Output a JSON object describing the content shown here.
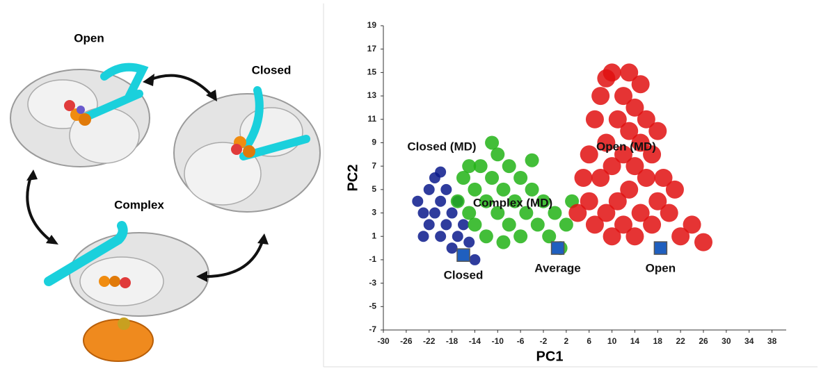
{
  "structures": {
    "labels": [
      "Open",
      "Closed",
      "Complex"
    ]
  },
  "chart_data": {
    "type": "scatter",
    "xlabel": "PC1",
    "ylabel": "PC2",
    "xlim": [
      -30,
      40
    ],
    "ylim": [
      -7,
      19
    ],
    "xticks": [
      -30,
      -26,
      -22,
      -18,
      -14,
      -10,
      -6,
      -2,
      2,
      6,
      10,
      14,
      18,
      22,
      26,
      30,
      34,
      38
    ],
    "yticks": [
      -7,
      -5,
      -3,
      -1,
      1,
      3,
      5,
      7,
      9,
      11,
      13,
      15,
      17,
      19
    ],
    "series": [
      {
        "name": "Closed (MD)",
        "color": "#0a1a8c",
        "x": [
          -24,
          -23,
          -22,
          -22,
          -21,
          -21,
          -20,
          -20,
          -19,
          -19,
          -18,
          -18,
          -17,
          -17,
          -16,
          -16,
          -15,
          -14,
          -23,
          -20
        ],
        "y": [
          4,
          3,
          5,
          2,
          6,
          3,
          4,
          1,
          5,
          2,
          3,
          0,
          4,
          1,
          2,
          -0.5,
          0.5,
          -1,
          1,
          6.5
        ]
      },
      {
        "name": "Complex (MD)",
        "color": "#22b316",
        "x": [
          -17,
          -16,
          -15,
          -14,
          -14,
          -13,
          -12,
          -12,
          -11,
          -10,
          -10,
          -9,
          -8,
          -8,
          -7,
          -6,
          -6,
          -5,
          -4,
          -3,
          -2,
          -1,
          0,
          1,
          2,
          -9,
          -11,
          -4,
          3,
          -15
        ],
        "y": [
          4,
          6,
          3,
          5,
          2,
          7,
          4,
          1,
          6,
          3,
          8,
          5,
          2,
          7,
          4,
          6,
          1,
          3,
          5,
          2,
          4,
          1,
          3,
          0,
          2,
          0.5,
          9,
          7.5,
          4,
          7
        ]
      },
      {
        "name": "Open (MD)",
        "color": "#e01010",
        "x": [
          6,
          6,
          7,
          7,
          8,
          8,
          9,
          9,
          10,
          10,
          10,
          11,
          11,
          12,
          12,
          12,
          13,
          13,
          13,
          14,
          14,
          14,
          15,
          15,
          16,
          16,
          17,
          17,
          18,
          18,
          19,
          20,
          21,
          22,
          24,
          26,
          5,
          4,
          9,
          15
        ],
        "y": [
          4,
          8,
          2,
          11,
          6,
          13,
          3,
          9,
          15,
          7,
          1,
          11,
          4,
          13,
          8,
          2,
          15,
          10,
          5,
          12,
          7,
          1,
          9,
          3,
          11,
          6,
          8,
          2,
          10,
          4,
          6,
          3,
          5,
          1,
          2,
          0.5,
          6,
          3,
          14.5,
          14
        ]
      }
    ],
    "points": [
      {
        "label": "Closed",
        "x": -16,
        "y": -0.6
      },
      {
        "label": "Average",
        "x": 0.5,
        "y": 0
      },
      {
        "label": "Open",
        "x": 18.5,
        "y": 0
      }
    ],
    "point_color": "#1f5fbf"
  }
}
